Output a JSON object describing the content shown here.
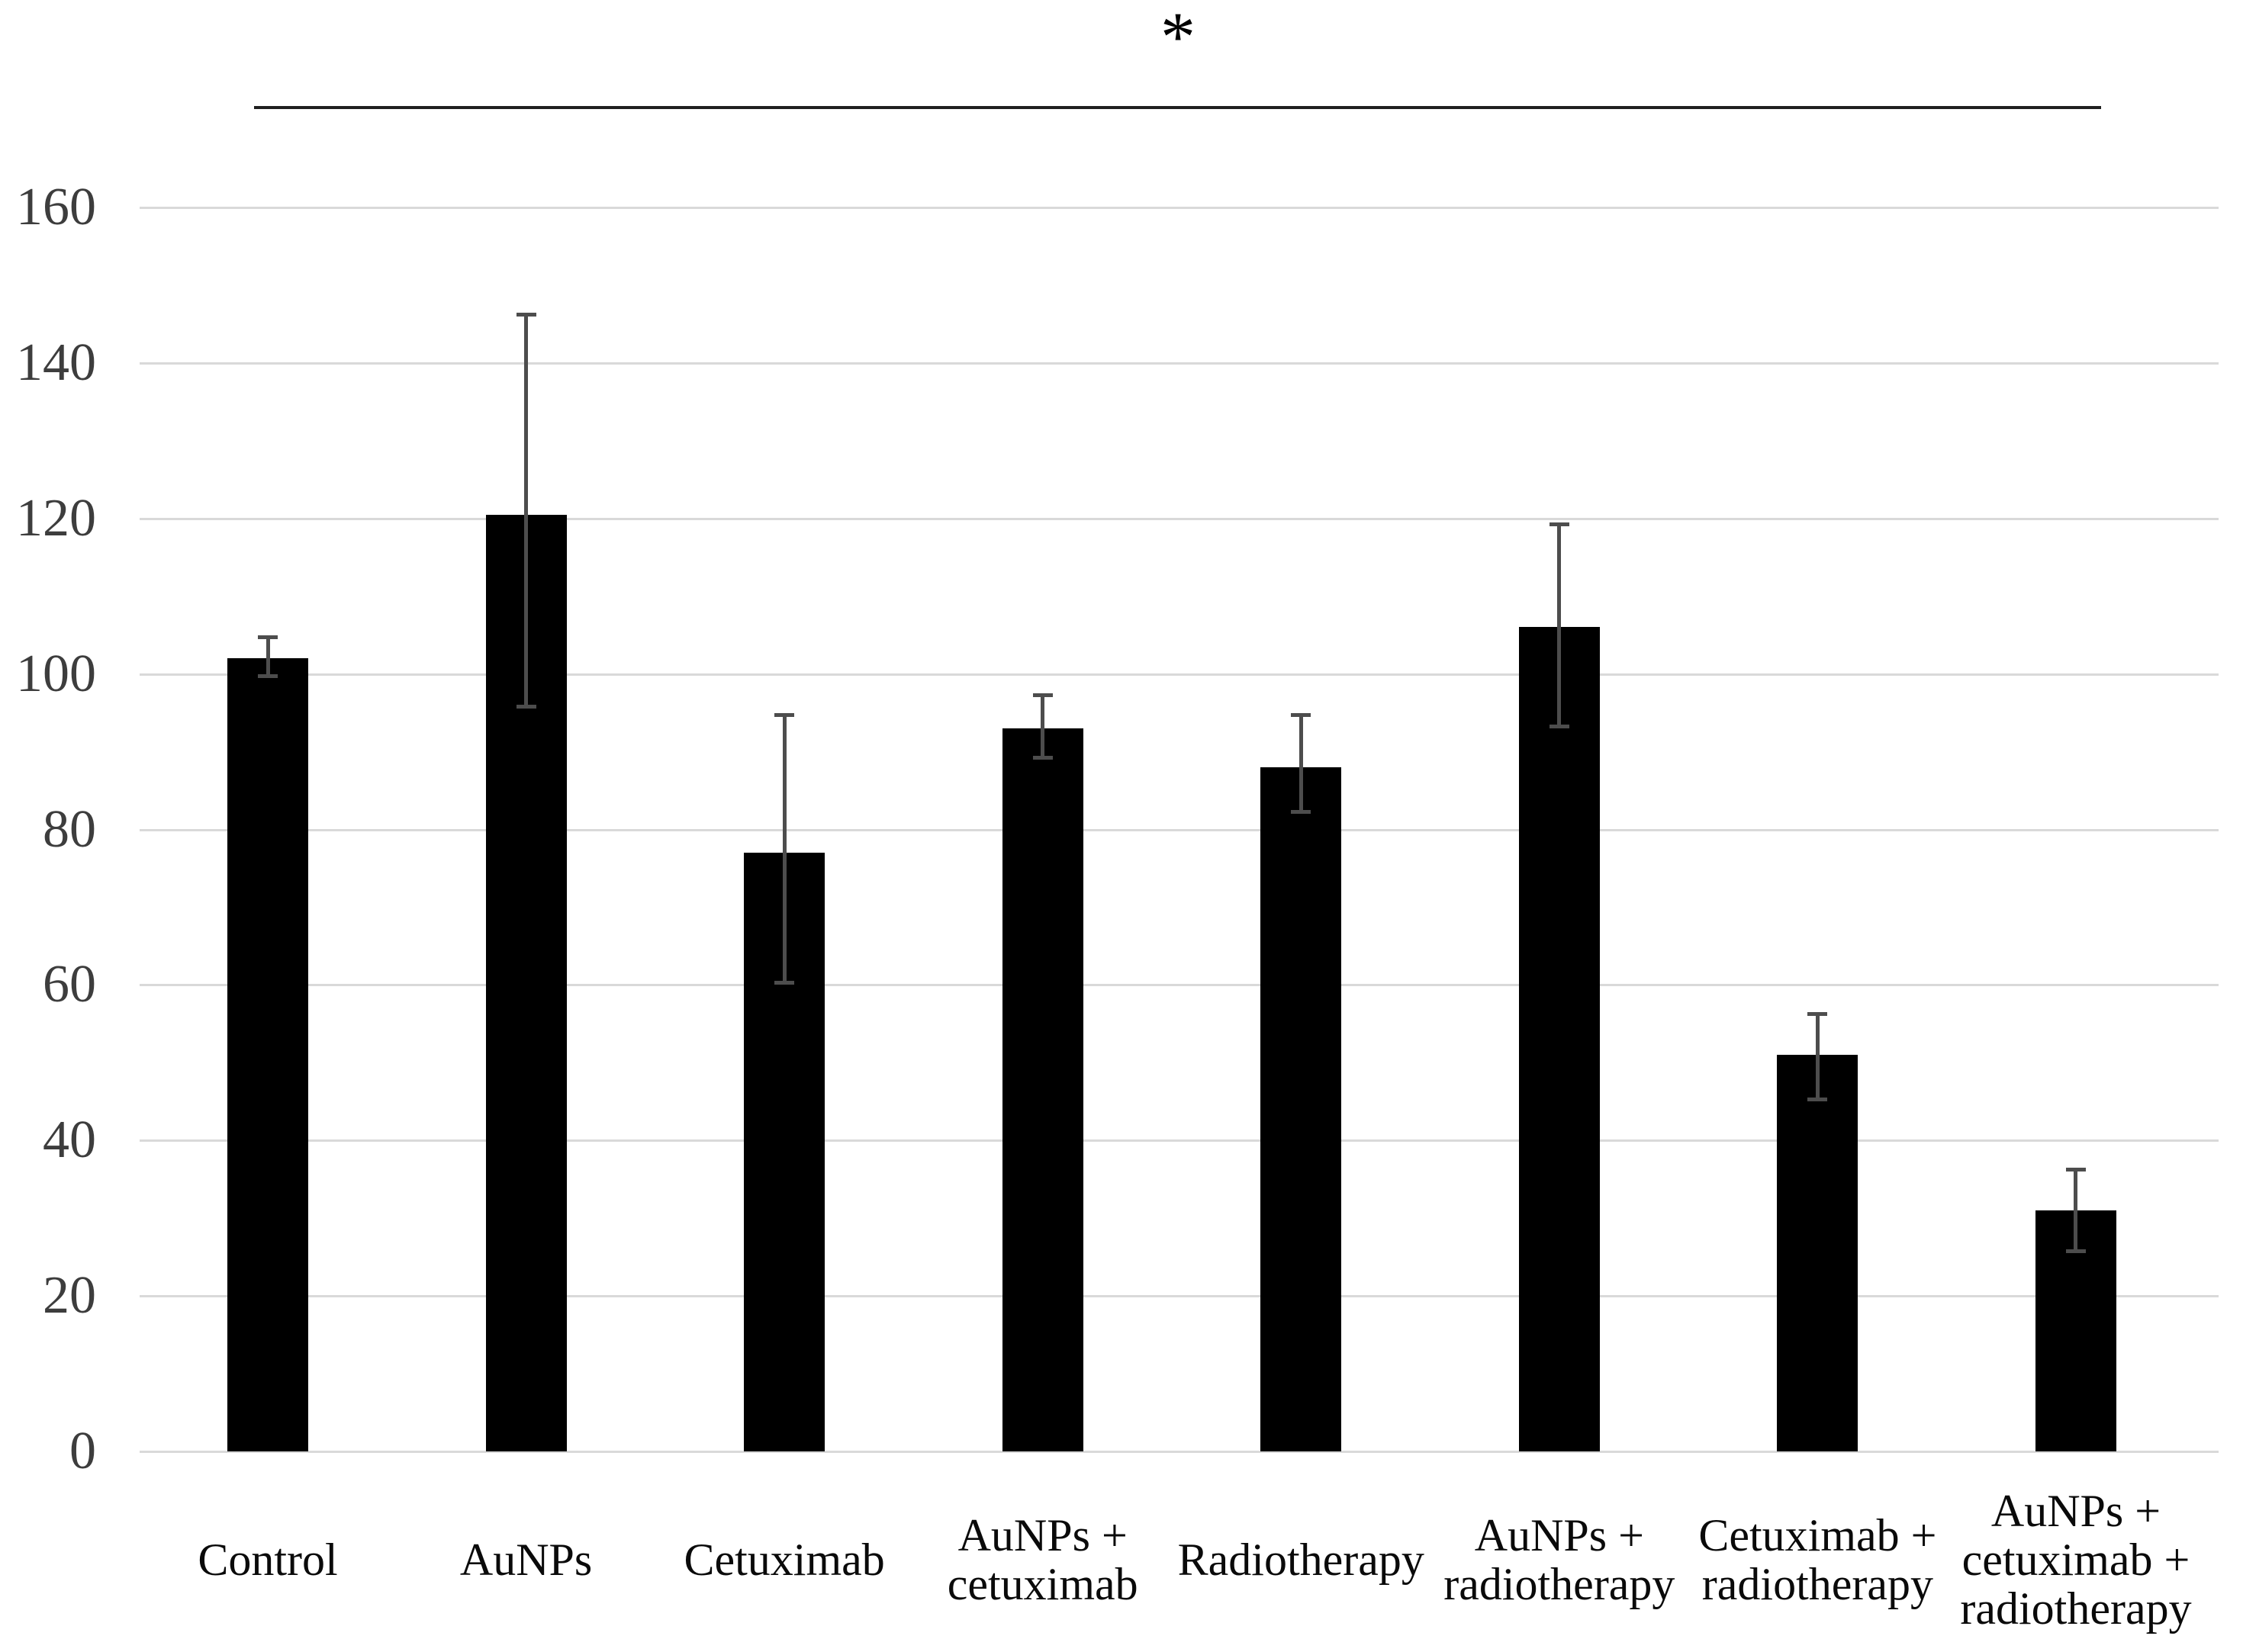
{
  "chart_data": {
    "type": "bar",
    "title": "",
    "xlabel": "",
    "ylabel": "",
    "categories": [
      "Control",
      "AuNPs",
      "Cetuximab",
      "AuNPs + cetuximab",
      "Radiotherapy",
      "AuNPs + radiotherapy",
      "Cetuximab + radiotherapy",
      "AuNPs + cetuximab + radiotherapy"
    ],
    "category_label_lines": [
      [
        "Control"
      ],
      [
        "AuNPs"
      ],
      [
        "Cetuximab"
      ],
      [
        "AuNPs +",
        "cetuximab"
      ],
      [
        "Radiotherapy"
      ],
      [
        "AuNPs +",
        "radiotherapy"
      ],
      [
        "Cetuximab +",
        "radiotherapy"
      ],
      [
        "AuNPs +",
        "cetuximab +",
        "radiotherapy"
      ]
    ],
    "values": [
      102,
      120.5,
      77,
      93,
      88,
      106,
      51,
      31
    ],
    "error_bar_top": [
      105,
      146.5,
      95,
      97.5,
      95,
      119.5,
      56.5,
      36.5
    ],
    "error_bar_bottom": [
      99.5,
      95.5,
      60,
      89,
      82,
      93,
      45,
      25.5
    ],
    "ylim": [
      0,
      160
    ],
    "yticks": [
      0,
      20,
      40,
      60,
      80,
      100,
      120,
      140,
      160
    ],
    "grid": true,
    "legend": "none",
    "bar_color": "#000000",
    "error_bar_color": "#4d4d4d",
    "gridline_color": "#d9d9d9",
    "axis_text_color": "#3d3d3d",
    "significance": {
      "symbol": "*",
      "from_category_index": 0,
      "to_category_index": 7,
      "line_color": "#202020"
    }
  }
}
